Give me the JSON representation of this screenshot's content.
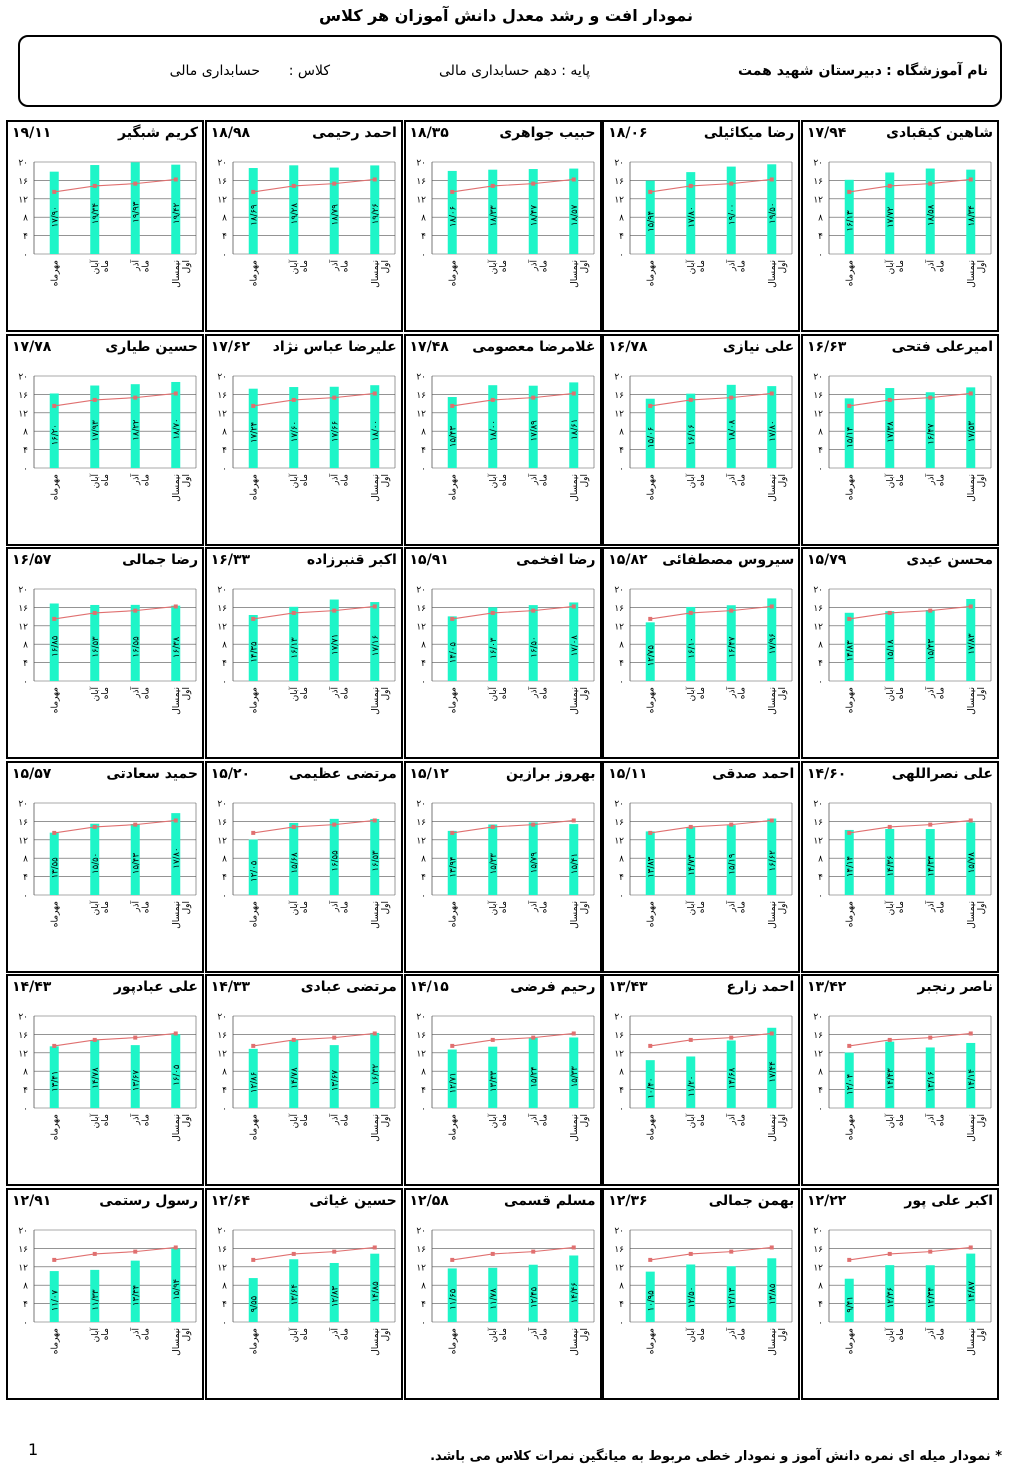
{
  "title": "نمودار  افت و رشد معدل دانش آموزان هر کلاس",
  "school": {
    "label": "نام آموزشگاه :",
    "name": "دبیرستان شهید همت",
    "grade": "پایه : دهم حسابداری مالی",
    "class_label": "کلاس :",
    "class_name": "حسابداری مالی"
  },
  "footnote": "* نمودار میله ای نمره دانش آموز و نمودار خطی مربوط به میانگین نمرات کلاس می باشد.",
  "page_number": "1",
  "colors": {
    "bar": "#1ef5c8",
    "line": "#e07070",
    "grid": "#000000"
  },
  "chart_data": {
    "type": "bar",
    "categories": [
      "مهرماه",
      "آبان ماه",
      "آذر ماه",
      "نیمسال اول"
    ],
    "ylim": [
      0,
      20
    ],
    "yticks": [
      "۰",
      "۴",
      "۸",
      "۱۲",
      "۱۶",
      "۲۰"
    ],
    "class_average": [
      13.5,
      14.8,
      15.3,
      16.2
    ],
    "students": [
      {
        "name": "شاهین کیقبادی",
        "average": "۱۷/۹۴",
        "values": [
          16.13,
          17.72,
          18.58,
          18.34
        ],
        "labels": [
          "۱۶/۱۳",
          "۱۷/۷۲",
          "۱۸/۵۸",
          "۱۸/۳۴"
        ]
      },
      {
        "name": "رضا میکائیلی",
        "average": "۱۸/۰۶",
        "values": [
          15.94,
          17.8,
          19.0,
          19.5
        ],
        "labels": [
          "۱۵/۹۴",
          "۱۷/۸۰",
          "۱۹/۰۰",
          "۱۹/۵۰"
        ]
      },
      {
        "name": "حبیب جواهری",
        "average": "۱۸/۳۵",
        "values": [
          18.06,
          18.33,
          18.47,
          18.57
        ],
        "labels": [
          "۱۸/۰۶",
          "۱۸/۳۳",
          "۱۸/۴۷",
          "۱۸/۵۷"
        ]
      },
      {
        "name": "احمد رحیمی",
        "average": "۱۸/۹۸",
        "values": [
          18.69,
          19.28,
          18.79,
          19.26
        ],
        "labels": [
          "۱۸/۶۹",
          "۱۹/۲۸",
          "۱۸/۷۹",
          "۱۹/۲۶"
        ]
      },
      {
        "name": "کریم شبگیر",
        "average": "۱۹/۱۱",
        "values": [
          17.9,
          19.34,
          19.93,
          19.42
        ],
        "labels": [
          "۱۷/۹۰",
          "۱۹/۳۴",
          "۱۹/۹۳",
          "۱۹/۴۲"
        ]
      },
      {
        "name": "امیرعلی فتحی",
        "average": "۱۶/۶۳",
        "values": [
          15.14,
          17.38,
          16.47,
          17.53
        ],
        "labels": [
          "۱۵/۱۴",
          "۱۷/۳۸",
          "۱۶/۴۷",
          "۱۷/۵۳"
        ]
      },
      {
        "name": "علی نیازی",
        "average": "۱۶/۷۸",
        "values": [
          15.06,
          16.16,
          18.08,
          17.8
        ],
        "labels": [
          "۱۵/۰۶",
          "۱۶/۱۶",
          "۱۸/۰۸",
          "۱۷/۸۰"
        ]
      },
      {
        "name": "غلامرضا معصومی",
        "average": "۱۷/۴۸",
        "values": [
          15.43,
          18.0,
          17.89,
          18.61
        ],
        "labels": [
          "۱۵/۴۳",
          "۱۸/۰۰",
          "۱۷/۸۹",
          "۱۸/۶۱"
        ]
      },
      {
        "name": "علیرضا عباس نژاد",
        "average": "۱۷/۶۲",
        "values": [
          17.24,
          17.6,
          17.66,
          18.0
        ],
        "labels": [
          "۱۷/۲۴",
          "۱۷/۶۰",
          "۱۷/۶۶",
          "۱۸/۰۰"
        ]
      },
      {
        "name": "حسین طیاری",
        "average": "۱۷/۷۸",
        "values": [
          16.2,
          17.93,
          18.22,
          18.7
        ],
        "labels": [
          "۱۶/۲۰",
          "۱۷/۹۳",
          "۱۸/۲۲",
          "۱۸/۷۰"
        ]
      },
      {
        "name": "محسن عیدی",
        "average": "۱۵/۷۹",
        "values": [
          14.83,
          15.18,
          15.43,
          17.83
        ],
        "labels": [
          "۱۴/۸۳",
          "۱۵/۱۸",
          "۱۵/۴۳",
          "۱۷/۸۳"
        ]
      },
      {
        "name": "سیروس مصطفائی",
        "average": "۱۵/۸۲",
        "values": [
          12.75,
          16.1,
          16.47,
          17.96
        ],
        "labels": [
          "۱۲/۷۵",
          "۱۶/۱۰",
          "۱۶/۴۷",
          "۱۷/۹۶"
        ]
      },
      {
        "name": "رضا افخمی",
        "average": "۱۵/۹۱",
        "values": [
          14.05,
          16.03,
          16.5,
          17.08
        ],
        "labels": [
          "۱۴/۰۵",
          "۱۶/۰۳",
          "۱۶/۵۰",
          "۱۷/۰۸"
        ]
      },
      {
        "name": "اکبر قنبرزاده",
        "average": "۱۶/۳۳",
        "values": [
          14.35,
          16.13,
          17.71,
          17.16
        ],
        "labels": [
          "۱۴/۳۵",
          "۱۶/۱۳",
          "۱۷/۷۱",
          "۱۷/۱۶"
        ]
      },
      {
        "name": "رضا جمالی",
        "average": "۱۶/۵۷",
        "values": [
          16.85,
          16.53,
          16.55,
          16.38
        ],
        "labels": [
          "۱۶/۸۵",
          "۱۶/۵۳",
          "۱۶/۵۵",
          "۱۶/۳۸"
        ]
      },
      {
        "name": "علی نصراللهی",
        "average": "۱۴/۶۰",
        "values": [
          14.14,
          14.36,
          14.34,
          15.78
        ],
        "labels": [
          "۱۴/۱۴",
          "۱۴/۳۶",
          "۱۴/۳۴",
          "۱۵/۷۸"
        ]
      },
      {
        "name": "احمد صدقی",
        "average": "۱۵/۱۱",
        "values": [
          13.83,
          14.73,
          15.19,
          16.62
        ],
        "labels": [
          "۱۳/۸۳",
          "۱۴/۷۳",
          "۱۵/۱۹",
          "۱۶/۶۲"
        ]
      },
      {
        "name": "بهروز برازین",
        "average": "۱۵/۱۲",
        "values": [
          13.94,
          15.33,
          15.79,
          15.41
        ],
        "labels": [
          "۱۳/۹۴",
          "۱۵/۳۳",
          "۱۵/۷۹",
          "۱۵/۴۱"
        ]
      },
      {
        "name": "مرتضی عظیمی",
        "average": "۱۵/۲۰",
        "values": [
          12.05,
          15.68,
          16.55,
          16.53
        ],
        "labels": [
          "۱۲/۰۵",
          "۱۵/۶۸",
          "۱۶/۵۵",
          "۱۶/۵۳"
        ]
      },
      {
        "name": "حمید سعادتی",
        "average": "۱۵/۵۷",
        "values": [
          13.55,
          15.5,
          15.43,
          17.8
        ],
        "labels": [
          "۱۳/۵۵",
          "۱۵/۵۰",
          "۱۵/۴۳",
          "۱۷/۸۰"
        ]
      },
      {
        "name": "ناصر رنجبر",
        "average": "۱۳/۴۲",
        "values": [
          12.04,
          14.43,
          13.16,
          14.14
        ],
        "labels": [
          "۱۲/۰۴",
          "۱۴/۴۳",
          "۱۳/۱۶",
          "۱۴/۱۴"
        ]
      },
      {
        "name": "احمد زارع",
        "average": "۱۳/۴۳",
        "values": [
          10.4,
          11.2,
          14.68,
          17.44
        ],
        "labels": [
          "۱۰/۴۰",
          "۱۱/۲۰",
          "۱۴/۶۸",
          "۱۷/۴۴"
        ]
      },
      {
        "name": "رحیم فرضی",
        "average": "۱۴/۱۵",
        "values": [
          12.71,
          13.33,
          15.24,
          15.33
        ],
        "labels": [
          "۱۲/۷۱",
          "۱۳/۳۳",
          "۱۵/۲۴",
          "۱۵/۳۳"
        ]
      },
      {
        "name": "مرتضی عبادی",
        "average": "۱۴/۳۳",
        "values": [
          12.86,
          14.78,
          13.67,
          16.32
        ],
        "labels": [
          "۱۲/۸۶",
          "۱۴/۷۸",
          "۱۳/۶۷",
          "۱۶/۳۲"
        ]
      },
      {
        "name": "علی عبادپور",
        "average": "۱۴/۴۳",
        "values": [
          13.41,
          14.78,
          13.67,
          16.05
        ],
        "labels": [
          "۱۳/۴۱",
          "۱۴/۷۸",
          "۱۳/۶۷",
          "۱۶/۰۵"
        ]
      },
      {
        "name": "اکبر علی پور",
        "average": "۱۲/۲۲",
        "values": [
          9.41,
          12.36,
          12.34,
          14.87
        ],
        "labels": [
          "۹/۴۱",
          "۱۲/۳۶",
          "۱۲/۳۴",
          "۱۴/۸۷"
        ]
      },
      {
        "name": "بهمن جمالی",
        "average": "۱۲/۳۶",
        "values": [
          10.95,
          12.5,
          12.13,
          13.85
        ],
        "labels": [
          "۱۰/۹۵",
          "۱۲/۵۰",
          "۱۲/۱۳",
          "۱۳/۸۵"
        ]
      },
      {
        "name": "مسلم قسمی",
        "average": "۱۲/۵۸",
        "values": [
          11.65,
          11.78,
          12.45,
          14.46
        ],
        "labels": [
          "۱۱/۶۵",
          "۱۱/۷۸",
          "۱۲/۴۵",
          "۱۴/۴۶"
        ]
      },
      {
        "name": "حسین غیاثی",
        "average": "۱۲/۶۴",
        "values": [
          9.55,
          13.64,
          12.83,
          14.85
        ],
        "labels": [
          "۹/۵۵",
          "۱۳/۶۴",
          "۱۲/۸۳",
          "۱۴/۸۵"
        ]
      },
      {
        "name": "رسول رستمی",
        "average": "۱۲/۹۱",
        "values": [
          11.07,
          11.33,
          13.34,
          15.94
        ],
        "labels": [
          "۱۱/۰۷",
          "۱۱/۳۳",
          "۱۳/۳۴",
          "۱۵/۹۴"
        ]
      }
    ]
  }
}
